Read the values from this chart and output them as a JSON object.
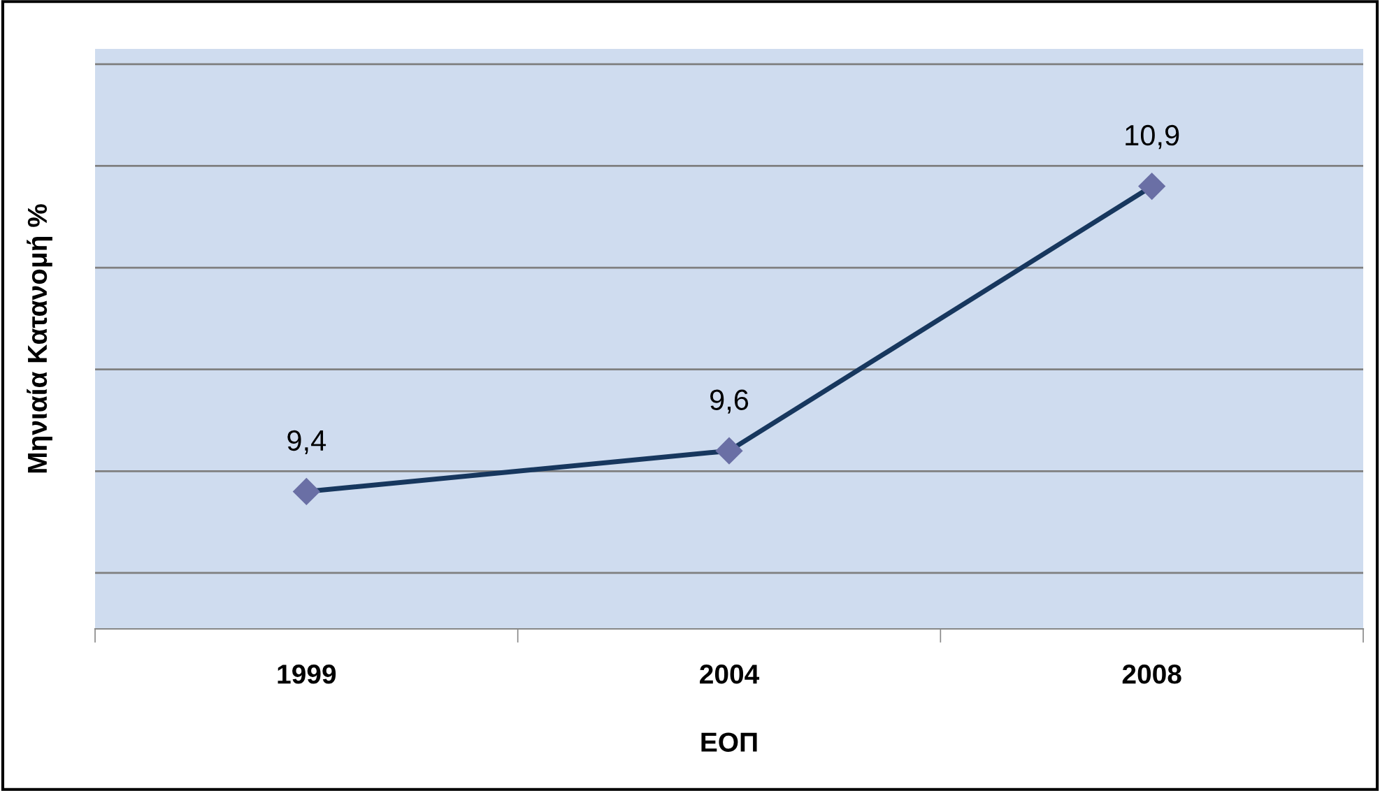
{
  "chart_data": {
    "type": "line",
    "xlabel": "ΕΟΠ",
    "ylabel": "Μηνιαία Κατανομή %",
    "categories": [
      "1999",
      "2004",
      "2008"
    ],
    "series": [
      {
        "color": "#17375e",
        "values": [
          9.4,
          9.6,
          10.9
        ],
        "value_labels": [
          "9,4",
          "9,6",
          "10,9"
        ]
      }
    ],
    "tick_labels": "x",
    "grid": "y",
    "marker": "diamond",
    "legend": false
  }
}
